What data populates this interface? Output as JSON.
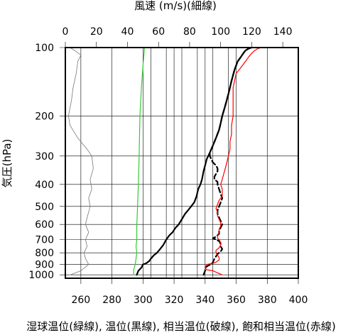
{
  "chart_data": {
    "type": "line",
    "title": "",
    "top_axis": {
      "label": "風速 (m/s)(細線)",
      "ticks": [
        0,
        20,
        40,
        60,
        80,
        100,
        120,
        140
      ],
      "range": [
        0,
        150
      ]
    },
    "bottom_axis": {
      "label": "湿球温位(緑線), 温位(黒線), 相当温位(破線), 飽和相当温位(赤線)",
      "ticks": [
        260,
        280,
        300,
        320,
        340,
        360,
        380,
        400
      ],
      "range": [
        250,
        400
      ]
    },
    "left_axis": {
      "label": "気圧(hPa)",
      "scale": "log",
      "inverted": true,
      "ticks": [
        100,
        200,
        300,
        400,
        500,
        600,
        700,
        800,
        900,
        1000
      ],
      "range": [
        100,
        1035
      ]
    },
    "extra_gridlines_x": [
      305,
      315,
      325,
      335,
      345,
      355
    ],
    "series": [
      {
        "name": "風速",
        "axis": "top",
        "color": "#777777",
        "style": "thin",
        "points": [
          [
            3,
            1000
          ],
          [
            10,
            960
          ],
          [
            15,
            900
          ],
          [
            13,
            850
          ],
          [
            12,
            800
          ],
          [
            14,
            750
          ],
          [
            13,
            700
          ],
          [
            15,
            650
          ],
          [
            13,
            600
          ],
          [
            14,
            560
          ],
          [
            16,
            500
          ],
          [
            15,
            460
          ],
          [
            17,
            420
          ],
          [
            16,
            380
          ],
          [
            18,
            340
          ],
          [
            17,
            300
          ],
          [
            14,
            280
          ],
          [
            8,
            250
          ],
          [
            3,
            220
          ],
          [
            2,
            200
          ],
          [
            4,
            170
          ],
          [
            5,
            150
          ],
          [
            7,
            130
          ],
          [
            8,
            115
          ],
          [
            10,
            108
          ],
          [
            6,
            103
          ],
          [
            3,
            100
          ]
        ]
      },
      {
        "name": "湿球温位",
        "axis": "bottom",
        "color": "#33cc33",
        "style": "solid",
        "points": [
          [
            294,
            1000
          ],
          [
            294,
            950
          ],
          [
            295,
            900
          ],
          [
            295.5,
            850
          ],
          [
            296,
            800
          ],
          [
            295.5,
            750
          ],
          [
            296,
            700
          ],
          [
            296,
            650
          ],
          [
            296,
            600
          ],
          [
            296.5,
            500
          ],
          [
            297,
            400
          ],
          [
            297.5,
            300
          ],
          [
            298,
            200
          ],
          [
            299,
            150
          ],
          [
            300,
            120
          ],
          [
            301,
            100
          ]
        ]
      },
      {
        "name": "温位",
        "axis": "bottom",
        "color": "#000000",
        "style": "thick",
        "points": [
          [
            296,
            1000
          ],
          [
            297,
            960
          ],
          [
            299,
            930
          ],
          [
            300,
            900
          ],
          [
            302,
            890
          ],
          [
            304,
            870
          ],
          [
            305,
            850
          ],
          [
            307,
            820
          ],
          [
            309,
            800
          ],
          [
            311,
            770
          ],
          [
            313,
            740
          ],
          [
            314,
            720
          ],
          [
            315,
            700
          ],
          [
            317,
            670
          ],
          [
            319,
            650
          ],
          [
            321,
            620
          ],
          [
            323,
            600
          ],
          [
            325,
            570
          ],
          [
            327,
            540
          ],
          [
            329,
            520
          ],
          [
            331,
            500
          ],
          [
            333,
            480
          ],
          [
            334.5,
            450
          ],
          [
            335.5,
            420
          ],
          [
            337,
            400
          ],
          [
            338,
            380
          ],
          [
            339,
            350
          ],
          [
            340,
            330
          ],
          [
            341,
            310
          ],
          [
            342,
            300
          ],
          [
            343,
            290
          ],
          [
            345,
            270
          ],
          [
            347,
            250
          ],
          [
            349,
            230
          ],
          [
            350,
            215
          ],
          [
            351,
            200
          ],
          [
            353,
            180
          ],
          [
            355,
            160
          ],
          [
            357,
            140
          ],
          [
            359,
            125
          ],
          [
            361,
            115
          ],
          [
            363,
            110
          ],
          [
            365,
            105
          ],
          [
            366,
            103
          ],
          [
            368,
            101
          ],
          [
            370,
            100
          ]
        ]
      },
      {
        "name": "相当温位",
        "axis": "bottom",
        "color": "#000000",
        "style": "dashed",
        "points": [
          [
            339,
            1000
          ],
          [
            340,
            960
          ],
          [
            340,
            930
          ],
          [
            342,
            910
          ],
          [
            344,
            900
          ],
          [
            345,
            880
          ],
          [
            346,
            850
          ],
          [
            348,
            810
          ],
          [
            350,
            790
          ],
          [
            351,
            770
          ],
          [
            350,
            750
          ],
          [
            350,
            730
          ],
          [
            349,
            710
          ],
          [
            347,
            700
          ],
          [
            345,
            690
          ],
          [
            347,
            680
          ],
          [
            349,
            660
          ],
          [
            349,
            640
          ],
          [
            350,
            620
          ],
          [
            351,
            600
          ],
          [
            350,
            580
          ],
          [
            349,
            560
          ],
          [
            348,
            540
          ],
          [
            348,
            520
          ],
          [
            349,
            500
          ],
          [
            350,
            480
          ],
          [
            351,
            460
          ],
          [
            350,
            440
          ],
          [
            349,
            420
          ],
          [
            348,
            400
          ],
          [
            348,
            390
          ],
          [
            346,
            380
          ],
          [
            346,
            370
          ],
          [
            347,
            360
          ],
          [
            348,
            350
          ],
          [
            348,
            340
          ],
          [
            347,
            330
          ],
          [
            345,
            320
          ],
          [
            344,
            310
          ],
          [
            343,
            300
          ],
          [
            343,
            290
          ],
          [
            345,
            270
          ],
          [
            347,
            250
          ],
          [
            349,
            230
          ],
          [
            350,
            215
          ],
          [
            351,
            200
          ],
          [
            353,
            180
          ],
          [
            355,
            160
          ],
          [
            357,
            140
          ],
          [
            359,
            125
          ],
          [
            361,
            115
          ],
          [
            363,
            110
          ],
          [
            365,
            105
          ],
          [
            366,
            103
          ],
          [
            368,
            101
          ],
          [
            370,
            100
          ]
        ]
      },
      {
        "name": "飽和相当温位",
        "axis": "bottom",
        "color": "#ff0000",
        "style": "solid",
        "points": [
          [
            351,
            1000
          ],
          [
            348,
            980
          ],
          [
            345,
            960
          ],
          [
            341,
            950
          ],
          [
            340,
            930
          ],
          [
            341,
            900
          ],
          [
            345,
            890
          ],
          [
            347,
            880
          ],
          [
            349,
            860
          ],
          [
            349,
            840
          ],
          [
            348,
            820
          ],
          [
            347,
            800
          ],
          [
            347,
            780
          ],
          [
            349,
            760
          ],
          [
            350,
            740
          ],
          [
            350,
            720
          ],
          [
            349,
            700
          ],
          [
            348,
            690
          ],
          [
            348,
            670
          ],
          [
            349,
            650
          ],
          [
            349,
            630
          ],
          [
            350,
            610
          ],
          [
            350,
            590
          ],
          [
            349,
            570
          ],
          [
            348,
            550
          ],
          [
            348,
            530
          ],
          [
            347,
            510
          ],
          [
            348,
            490
          ],
          [
            349,
            470
          ],
          [
            351,
            450
          ],
          [
            351,
            420
          ],
          [
            350,
            400
          ],
          [
            351,
            380
          ],
          [
            352,
            360
          ],
          [
            353,
            340
          ],
          [
            354,
            320
          ],
          [
            355,
            300
          ],
          [
            356,
            280
          ],
          [
            356,
            260
          ],
          [
            357,
            240
          ],
          [
            357,
            220
          ],
          [
            358,
            200
          ],
          [
            358,
            180
          ],
          [
            358,
            160
          ],
          [
            358,
            150
          ],
          [
            359,
            140
          ],
          [
            360,
            130
          ],
          [
            362,
            125
          ],
          [
            364,
            120
          ],
          [
            366,
            115
          ],
          [
            368,
            110
          ],
          [
            370,
            106
          ],
          [
            372,
            103
          ],
          [
            374,
            101
          ],
          [
            376,
            100
          ]
        ]
      }
    ]
  }
}
